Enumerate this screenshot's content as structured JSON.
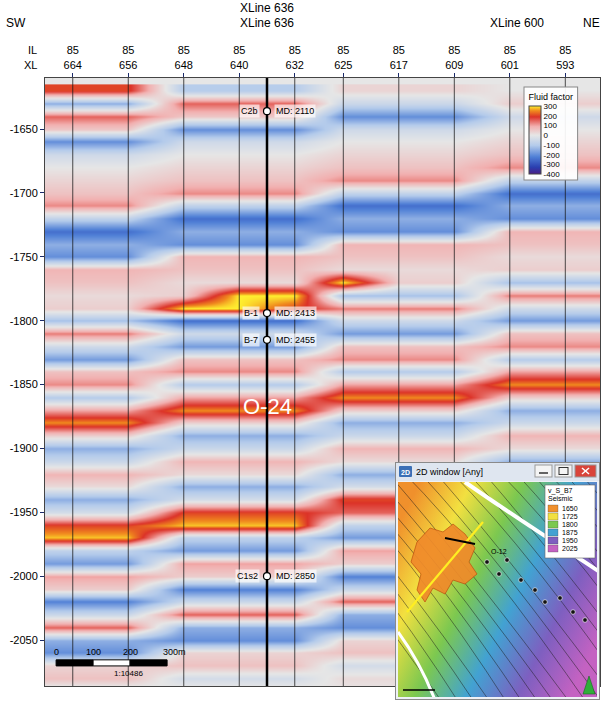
{
  "chart_data": {
    "type": "heatmap",
    "header_rows": [
      [
        {
          "xl": 636,
          "text": "XLine 636"
        }
      ],
      [
        {
          "side": "left",
          "text": "SW"
        },
        {
          "xl": 636,
          "text": "XLine 636"
        },
        {
          "xl": 600,
          "text": "XLine 600"
        },
        {
          "side": "right",
          "text": "NE"
        }
      ]
    ],
    "row_labels": [
      "IL",
      "XL"
    ],
    "il": [
      85,
      85,
      85,
      85,
      85,
      85,
      85,
      85,
      85,
      85
    ],
    "xticks": [
      664,
      656,
      648,
      640,
      632,
      625,
      617,
      609,
      601,
      593
    ],
    "xlim": [
      668,
      588
    ],
    "yticks": [
      -1650,
      -1700,
      -1750,
      -1800,
      -1850,
      -1900,
      -1950,
      -2000,
      -2050
    ],
    "ylim": [
      -2086,
      -1610
    ],
    "grid": true,
    "x": [
      668,
      664,
      656,
      648,
      640,
      632,
      625,
      617,
      609,
      601,
      593,
      588
    ],
    "y": [
      -1620,
      -1630,
      -1640,
      -1650,
      -1660,
      -1670,
      -1680,
      -1690,
      -1700,
      -1710,
      -1720,
      -1730,
      -1740,
      -1750,
      -1760,
      -1770,
      -1780,
      -1790,
      -1800,
      -1810,
      -1820,
      -1830,
      -1840,
      -1850,
      -1860,
      -1870,
      -1880,
      -1890,
      -1900,
      -1910,
      -1920,
      -1930,
      -1940,
      -1950,
      -1960,
      -1970,
      -1980,
      -1990,
      -2000,
      -2010,
      -2020,
      -2030,
      -2040,
      -2050,
      -2060,
      -2070,
      -2080,
      -2090
    ],
    "z": [
      [
        200,
        200,
        200,
        -100,
        -100,
        -100,
        30,
        30,
        30,
        0,
        0,
        0
      ],
      [
        -150,
        -150,
        -150,
        150,
        150,
        150,
        -60,
        -60,
        -60,
        40,
        40,
        40
      ],
      [
        150,
        150,
        150,
        50,
        50,
        50,
        -200,
        -200,
        -200,
        -50,
        -50,
        -50
      ],
      [
        50,
        50,
        50,
        -200,
        -200,
        -200,
        -50,
        -50,
        -50,
        0,
        0,
        0
      ],
      [
        -200,
        -200,
        -200,
        -50,
        -50,
        -50,
        0,
        0,
        0,
        30,
        30,
        30
      ],
      [
        -50,
        -50,
        -50,
        0,
        0,
        0,
        30,
        30,
        30,
        60,
        60,
        60
      ],
      [
        0,
        0,
        0,
        30,
        30,
        30,
        60,
        60,
        60,
        120,
        120,
        120
      ],
      [
        30,
        30,
        30,
        60,
        60,
        60,
        120,
        120,
        120,
        -80,
        -80,
        -80
      ],
      [
        60,
        60,
        60,
        120,
        120,
        120,
        -80,
        -80,
        -80,
        -250,
        -250,
        -250
      ],
      [
        120,
        120,
        120,
        -80,
        -80,
        -80,
        -250,
        -250,
        -250,
        -150,
        -150,
        -150
      ],
      [
        -80,
        -80,
        -80,
        -250,
        -250,
        -250,
        -150,
        -150,
        -150,
        -200,
        -200,
        -200
      ],
      [
        -250,
        -250,
        -250,
        -150,
        -150,
        -150,
        -200,
        -200,
        -200,
        80,
        80,
        80
      ],
      [
        -150,
        -150,
        -150,
        -200,
        -200,
        -200,
        80,
        80,
        80,
        60,
        60,
        60
      ],
      [
        -200,
        -200,
        -200,
        80,
        80,
        80,
        60,
        60,
        60,
        20,
        20,
        20
      ],
      [
        80,
        80,
        80,
        60,
        60,
        60,
        20,
        20,
        20,
        40,
        40,
        40
      ],
      [
        60,
        60,
        60,
        20,
        20,
        20,
        300,
        40,
        40,
        -120,
        -120,
        -120
      ],
      [
        20,
        20,
        20,
        40,
        300,
        300,
        -120,
        -120,
        -120,
        130,
        130,
        130
      ],
      [
        40,
        40,
        40,
        300,
        300,
        200,
        130,
        130,
        130,
        -50,
        -50,
        -50
      ],
      [
        -120,
        -120,
        -120,
        -250,
        -250,
        -250,
        -50,
        -50,
        -50,
        -180,
        -180,
        -180
      ],
      [
        130,
        130,
        130,
        -50,
        -50,
        -50,
        -180,
        -180,
        -180,
        60,
        60,
        60
      ],
      [
        -50,
        -50,
        -50,
        -180,
        -180,
        -180,
        60,
        60,
        60,
        120,
        120,
        120
      ],
      [
        -180,
        -180,
        -180,
        60,
        60,
        60,
        120,
        120,
        120,
        -100,
        -100,
        -100
      ],
      [
        60,
        60,
        60,
        120,
        120,
        120,
        -100,
        -100,
        -100,
        100,
        100,
        100
      ],
      [
        120,
        120,
        120,
        -100,
        -100,
        -100,
        100,
        100,
        100,
        250,
        250,
        250
      ],
      [
        -100,
        -100,
        -100,
        100,
        100,
        100,
        250,
        250,
        250,
        40,
        40,
        40
      ],
      [
        100,
        100,
        100,
        250,
        250,
        250,
        40,
        40,
        40,
        -150,
        -150,
        -150
      ],
      [
        250,
        250,
        250,
        40,
        40,
        40,
        -150,
        -150,
        -150,
        -60,
        -60,
        -60
      ],
      [
        40,
        40,
        40,
        -150,
        -150,
        -150,
        -60,
        -60,
        -60,
        80,
        80,
        80
      ],
      [
        -150,
        -150,
        -150,
        -60,
        -60,
        -60,
        80,
        80,
        80,
        20,
        20,
        20
      ],
      [
        -60,
        -60,
        -60,
        80,
        80,
        80,
        20,
        20,
        20,
        -150,
        -150,
        -150
      ],
      [
        80,
        80,
        80,
        20,
        20,
        20,
        -150,
        -150,
        -150,
        -40,
        -40,
        -40
      ],
      [
        20,
        20,
        20,
        -150,
        -150,
        -150,
        -40,
        -40,
        -40,
        100,
        100,
        100
      ],
      [
        -150,
        -150,
        -150,
        -40,
        -40,
        -40,
        200,
        200,
        200,
        140,
        140,
        140
      ],
      [
        -40,
        -40,
        -40,
        200,
        200,
        200,
        150,
        150,
        150,
        -40,
        -40,
        -40
      ],
      [
        200,
        200,
        200,
        280,
        280,
        280,
        -80,
        -80,
        -80,
        -90,
        -90,
        -90
      ],
      [
        280,
        280,
        280,
        -80,
        -80,
        -80,
        -180,
        -180,
        -180,
        50,
        50,
        50
      ],
      [
        -80,
        -80,
        -80,
        -180,
        -180,
        -180,
        100,
        100,
        100,
        20,
        20,
        20
      ],
      [
        -180,
        -180,
        -180,
        100,
        100,
        100,
        40,
        40,
        40,
        -110,
        -110,
        -110
      ],
      [
        100,
        100,
        100,
        40,
        40,
        40,
        -220,
        -220,
        -220,
        -30,
        -30,
        -30
      ],
      [
        40,
        40,
        40,
        -220,
        -220,
        -220,
        -60,
        -60,
        -60,
        75,
        75,
        75
      ],
      [
        -220,
        -220,
        -220,
        -60,
        -60,
        -60,
        150,
        150,
        150,
        -75,
        -75,
        -75
      ],
      [
        -60,
        -60,
        -60,
        150,
        150,
        150,
        -150,
        -150,
        -150,
        -100,
        -100,
        -100
      ],
      [
        150,
        150,
        150,
        -150,
        -150,
        -150,
        -200,
        -200,
        -200,
        15,
        15,
        15
      ],
      [
        -150,
        -150,
        -150,
        -200,
        -200,
        -200,
        30,
        30,
        30,
        30,
        30,
        30
      ],
      [
        -200,
        -200,
        -200,
        30,
        30,
        30,
        60,
        60,
        60,
        -20,
        -20,
        -20
      ],
      [
        30,
        30,
        30,
        60,
        60,
        60,
        -40,
        -40,
        -40,
        10,
        10,
        10
      ],
      [
        60,
        60,
        60,
        -40,
        -40,
        -40,
        20,
        20,
        20,
        0,
        0,
        0
      ],
      [
        -40,
        -40,
        -40,
        20,
        20,
        20,
        0,
        0,
        0,
        0,
        0,
        0
      ]
    ],
    "colorbar": {
      "title": "Fluid factor",
      "range": [
        -400,
        300
      ],
      "ticks": [
        300,
        200,
        100,
        0,
        -100,
        -200,
        -300,
        -400
      ]
    },
    "well": {
      "xl": 636,
      "name": "O-24",
      "tops": [
        {
          "name": "C2b",
          "label": "MD: 2110",
          "y": -1636
        },
        {
          "name": "B-1",
          "label": "MD: 2413",
          "y": -1794
        },
        {
          "name": "B-7",
          "label": "MD: 2455",
          "y": -1815
        },
        {
          "name": "C1s2",
          "label": "MD: 2850",
          "y": -2000
        }
      ]
    },
    "scale_bar": {
      "labels": [
        "0",
        "100",
        "200",
        "300m"
      ],
      "ratio": "1:10486"
    }
  },
  "inset": {
    "icon": "2D",
    "title": "2D window [Any]",
    "legend_title": "v_S_B7",
    "legend_subtitle": "Seismic",
    "legend_labels": [
      "1650",
      "1725",
      "1800",
      "1875",
      "1950",
      "2025"
    ],
    "legend_colors": [
      "#f0902c",
      "#f2e040",
      "#7cc850",
      "#42a2d2",
      "#7e5fc0",
      "#c462c2"
    ],
    "well_label": "O-12"
  }
}
